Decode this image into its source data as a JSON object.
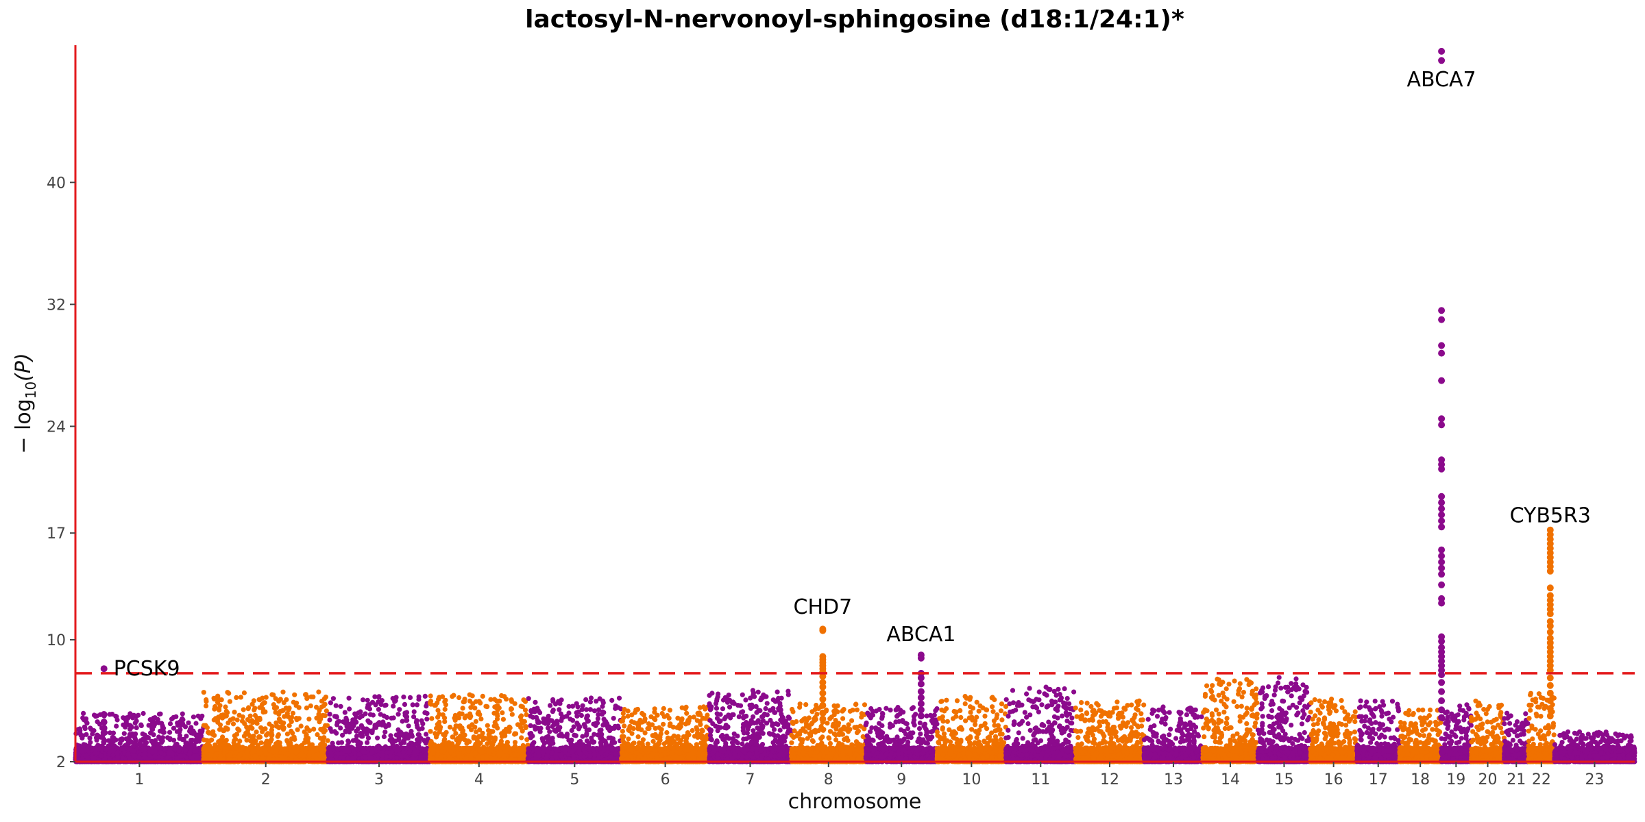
{
  "chart_data": {
    "type": "scatter",
    "subtype": "manhattan",
    "title": "lactosyl-N-nervonoyl-sphingosine (d18:1/24:1)*",
    "xlabel": "chromosome",
    "ylabel_parts": {
      "prefix": "− log",
      "sub": "10",
      "suffix": "(P)"
    },
    "ylim": [
      2,
      49
    ],
    "y_ticks": [
      2,
      10,
      17,
      24,
      32,
      40
    ],
    "significance_threshold": 7.8,
    "threshold_color": "#e31a1c",
    "axis_color": "#e31a1c",
    "colors": {
      "odd_chromosome": "#8b0a8c",
      "even_chromosome": "#f07100"
    },
    "chromosomes": [
      {
        "label": "1",
        "start": 0,
        "end": 248.9,
        "max": 5.2
      },
      {
        "label": "2",
        "start": 248.9,
        "end": 491.1,
        "max": 6.6
      },
      {
        "label": "3",
        "start": 491.1,
        "end": 689.4,
        "max": 6.3
      },
      {
        "label": "4",
        "start": 689.4,
        "end": 879.6,
        "max": 6.4
      },
      {
        "label": "5",
        "start": 879.6,
        "end": 1061.1,
        "max": 6.2
      },
      {
        "label": "6",
        "start": 1061.1,
        "end": 1232.0,
        "max": 5.6
      },
      {
        "label": "7",
        "start": 1232.0,
        "end": 1391.3,
        "max": 6.7
      },
      {
        "label": "8",
        "start": 1391.3,
        "end": 1536.5,
        "max": 5.8
      },
      {
        "label": "9",
        "start": 1536.5,
        "end": 1674.9,
        "max": 5.6
      },
      {
        "label": "10",
        "start": 1674.9,
        "end": 1808.7,
        "max": 6.3
      },
      {
        "label": "11",
        "start": 1808.7,
        "end": 1943.8,
        "max": 6.9
      },
      {
        "label": "12",
        "start": 1943.8,
        "end": 2077.1,
        "max": 6.0
      },
      {
        "label": "13",
        "start": 2077.1,
        "end": 2191.5,
        "max": 5.6
      },
      {
        "label": "14",
        "start": 2191.5,
        "end": 2298.5,
        "max": 7.5
      },
      {
        "label": "15",
        "start": 2298.5,
        "end": 2400.5,
        "max": 7.6
      },
      {
        "label": "16",
        "start": 2400.5,
        "end": 2490.8,
        "max": 6.2
      },
      {
        "label": "17",
        "start": 2490.8,
        "end": 2574.0,
        "max": 6.0
      },
      {
        "label": "18",
        "start": 2574.0,
        "end": 2654.4,
        "max": 5.4
      },
      {
        "label": "19",
        "start": 2654.4,
        "end": 2713.0,
        "max": 5.8
      },
      {
        "label": "20",
        "start": 2713.0,
        "end": 2777.5,
        "max": 6.0
      },
      {
        "label": "21",
        "start": 2777.5,
        "end": 2824.2,
        "max": 5.2
      },
      {
        "label": "22",
        "start": 2824.2,
        "end": 2875.0,
        "max": 6.5
      },
      {
        "label": "23",
        "start": 2875.0,
        "end": 3031.0,
        "max": 4.0
      }
    ],
    "peaks": [
      {
        "chrom": "1",
        "pos": 55.5,
        "values": [
          8.1,
          5.1,
          4.6,
          4.2,
          3.9
        ]
      },
      {
        "chrom": "8",
        "pos": 61.5,
        "values": [
          10.7,
          10.6,
          8.9,
          8.7,
          8.5,
          8.3,
          8.1,
          7.9,
          7.6,
          7.2,
          6.9,
          6.5,
          6.1,
          5.7,
          5.2,
          4.8
        ]
      },
      {
        "chrom": "9",
        "pos": 107.5,
        "values": [
          9.0,
          8.8,
          7.8,
          7.5,
          7.1,
          6.6,
          6.2,
          5.8,
          5.4,
          5.0
        ]
      },
      {
        "chrom": "19",
        "pos": 1.05,
        "values": [
          48.6,
          48.0,
          31.6,
          31.0,
          29.3,
          28.8,
          27.0,
          24.5,
          24.1,
          21.8,
          21.5,
          21.2,
          19.4,
          19.0,
          18.6,
          18.2,
          17.8,
          17.4,
          15.9,
          15.5,
          15.1,
          14.7,
          14.3,
          13.6,
          12.7,
          12.4,
          10.2,
          9.9,
          9.5,
          9.2,
          8.9,
          8.6,
          8.3,
          8.0,
          7.7,
          7.2,
          6.6,
          6.0,
          5.4,
          4.9
        ]
      },
      {
        "chrom": "22",
        "pos": 42.6,
        "values": [
          17.2,
          16.9,
          16.6,
          16.3,
          16.0,
          15.7,
          15.4,
          15.1,
          14.8,
          14.5,
          13.4,
          12.9,
          12.6,
          12.3,
          12.0,
          11.7,
          11.2,
          10.9,
          10.5,
          10.1,
          9.8,
          9.5,
          9.2,
          8.9,
          8.6,
          8.3,
          8.0,
          7.5,
          7.0,
          6.5,
          6.0,
          5.5,
          5.0
        ]
      }
    ],
    "annotations": [
      {
        "text": "PCSK9",
        "chrom": "1",
        "pos": 55.5,
        "y": 8.1,
        "anchor": "start"
      },
      {
        "text": "CHD7",
        "chrom": "8",
        "pos": 61.5,
        "y": 11.7,
        "anchor": "middle"
      },
      {
        "text": "ABCA1",
        "chrom": "9",
        "pos": 107.5,
        "y": 9.9,
        "anchor": "middle"
      },
      {
        "text": "ABCA7",
        "chrom": "19",
        "pos": 1.05,
        "y": 46.3,
        "anchor": "middle"
      },
      {
        "text": "CYB5R3",
        "chrom": "22",
        "pos": 42.6,
        "y": 17.7,
        "anchor": "middle"
      }
    ]
  }
}
